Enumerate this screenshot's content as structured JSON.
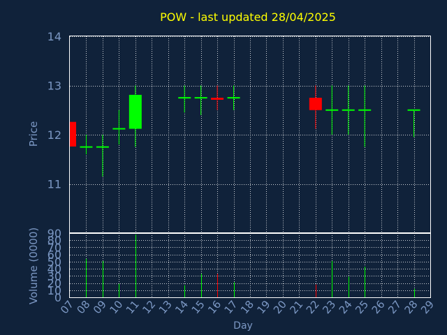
{
  "chart_data": [
    {
      "type": "candlestick",
      "title": "POW - last updated 28/04/2025",
      "ylabel": "Price",
      "ylim": [
        10.0,
        14.0
      ],
      "yticks": [
        11,
        12,
        13,
        14
      ],
      "grid": true,
      "categories": [
        "07",
        "08",
        "09",
        "10",
        "11",
        "12",
        "13",
        "14",
        "15",
        "16",
        "17",
        "18",
        "19",
        "20",
        "21",
        "22",
        "23",
        "24",
        "25",
        "26",
        "27",
        "28",
        "29"
      ],
      "candles": [
        {
          "day": "07",
          "open": 12.26,
          "close": 11.76,
          "high": 12.26,
          "low": 11.76
        },
        {
          "day": "08",
          "open": 11.75,
          "close": 11.75,
          "high": 12.0,
          "low": 11.6
        },
        {
          "day": "09",
          "open": 11.75,
          "close": 11.75,
          "high": 12.0,
          "low": 11.15
        },
        {
          "day": "10",
          "open": 12.12,
          "close": 12.12,
          "high": 12.5,
          "low": 11.8
        },
        {
          "day": "11",
          "open": 12.12,
          "close": 12.81,
          "high": 13.0,
          "low": 11.75
        },
        {
          "day": "14",
          "open": 12.75,
          "close": 12.75,
          "high": 13.0,
          "low": 12.45
        },
        {
          "day": "15",
          "open": 12.75,
          "close": 12.75,
          "high": 13.0,
          "low": 12.4
        },
        {
          "day": "16",
          "open": 12.75,
          "close": 12.71,
          "high": 13.0,
          "low": 12.5
        },
        {
          "day": "17",
          "open": 12.75,
          "close": 12.75,
          "high": 13.0,
          "low": 12.5
        },
        {
          "day": "22",
          "open": 12.75,
          "close": 12.5,
          "high": 13.0,
          "low": 12.12
        },
        {
          "day": "23",
          "open": 12.5,
          "close": 12.5,
          "high": 13.0,
          "low": 12.0
        },
        {
          "day": "24",
          "open": 12.5,
          "close": 12.5,
          "high": 13.0,
          "low": 12.0
        },
        {
          "day": "25",
          "open": 12.5,
          "close": 12.5,
          "high": 13.0,
          "low": 11.75
        },
        {
          "day": "28",
          "open": 12.5,
          "close": 12.5,
          "high": 12.5,
          "low": 11.95
        }
      ],
      "colors": {
        "up": "#00ff00",
        "down": "#ff0000",
        "background": "#10223a",
        "plot_border": "#ffffff",
        "grid": "#ffffff",
        "title": "#ffff00",
        "axis_text": "#7c98c4"
      }
    },
    {
      "type": "bar",
      "ylabel": "Volume (0000)",
      "xlabel": "Day",
      "ylim": [
        0,
        90
      ],
      "yticks": [
        0,
        10,
        20,
        30,
        40,
        50,
        60,
        70,
        80,
        90
      ],
      "grid": true,
      "categories": [
        "07",
        "08",
        "09",
        "10",
        "11",
        "12",
        "13",
        "14",
        "15",
        "16",
        "17",
        "18",
        "19",
        "20",
        "21",
        "22",
        "23",
        "24",
        "25",
        "26",
        "27",
        "28",
        "29"
      ],
      "bars": [
        {
          "day": "08",
          "value": 54,
          "direction": "up"
        },
        {
          "day": "09",
          "value": 51,
          "direction": "up"
        },
        {
          "day": "10",
          "value": 19,
          "direction": "up"
        },
        {
          "day": "11",
          "value": 88,
          "direction": "up"
        },
        {
          "day": "14",
          "value": 17,
          "direction": "up"
        },
        {
          "day": "15",
          "value": 33,
          "direction": "up"
        },
        {
          "day": "16",
          "value": 33,
          "direction": "down"
        },
        {
          "day": "17",
          "value": 21,
          "direction": "up"
        },
        {
          "day": "22",
          "value": 18,
          "direction": "down"
        },
        {
          "day": "23",
          "value": 51,
          "direction": "up"
        },
        {
          "day": "24",
          "value": 29,
          "direction": "up"
        },
        {
          "day": "25",
          "value": 43,
          "direction": "up"
        },
        {
          "day": "28",
          "value": 12,
          "direction": "up"
        }
      ]
    }
  ]
}
